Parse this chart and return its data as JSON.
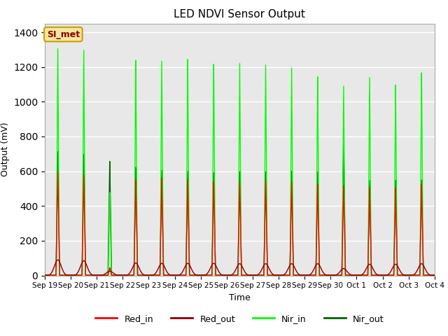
{
  "title": "LED NDVI Sensor Output",
  "xlabel": "Time",
  "ylabel": "Output (mV)",
  "ylim": [
    0,
    1450
  ],
  "yticks": [
    0,
    200,
    400,
    600,
    800,
    1000,
    1200,
    1400
  ],
  "background_color": "#ffffff",
  "plot_bg_color": "#e8e8e8",
  "annotation_text": "SI_met",
  "annotation_bg": "#f5e6a0",
  "annotation_border": "#c8a000",
  "annotation_text_color": "#8b0000",
  "colors": {
    "red_in": "#ff0000",
    "red_out": "#8b0000",
    "nir_in": "#00ff00",
    "nir_out": "#006400"
  },
  "xtick_labels": [
    "Sep 19",
    "Sep 20",
    "Sep 21",
    "Sep 22",
    "Sep 23",
    "Sep 24",
    "Sep 25",
    "Sep 26",
    "Sep 27",
    "Sep 28",
    "Sep 29",
    "Sep 30",
    "Oct 1",
    "Oct 2",
    "Oct 3",
    "Oct 4"
  ],
  "nir_in_peaks": [
    1320,
    1300,
    480,
    1255,
    1245,
    1245,
    1225,
    1240,
    1220,
    1195,
    1155,
    1105,
    1145,
    1100,
    1180
  ],
  "nir_out_peaks": [
    720,
    700,
    660,
    630,
    610,
    600,
    595,
    605,
    600,
    600,
    600,
    780,
    550,
    550,
    555
  ],
  "red_in_peaks": [
    605,
    580,
    45,
    555,
    565,
    555,
    545,
    545,
    550,
    540,
    530,
    525,
    510,
    505,
    530
  ],
  "red_out_peaks": [
    90,
    85,
    25,
    72,
    70,
    70,
    70,
    68,
    68,
    68,
    68,
    40,
    65,
    65,
    68
  ],
  "peak_offsets": [
    0.5,
    1.5,
    2.5,
    3.5,
    4.5,
    5.5,
    6.5,
    7.5,
    8.5,
    9.5,
    10.5,
    11.5,
    12.5,
    13.5,
    14.5
  ]
}
